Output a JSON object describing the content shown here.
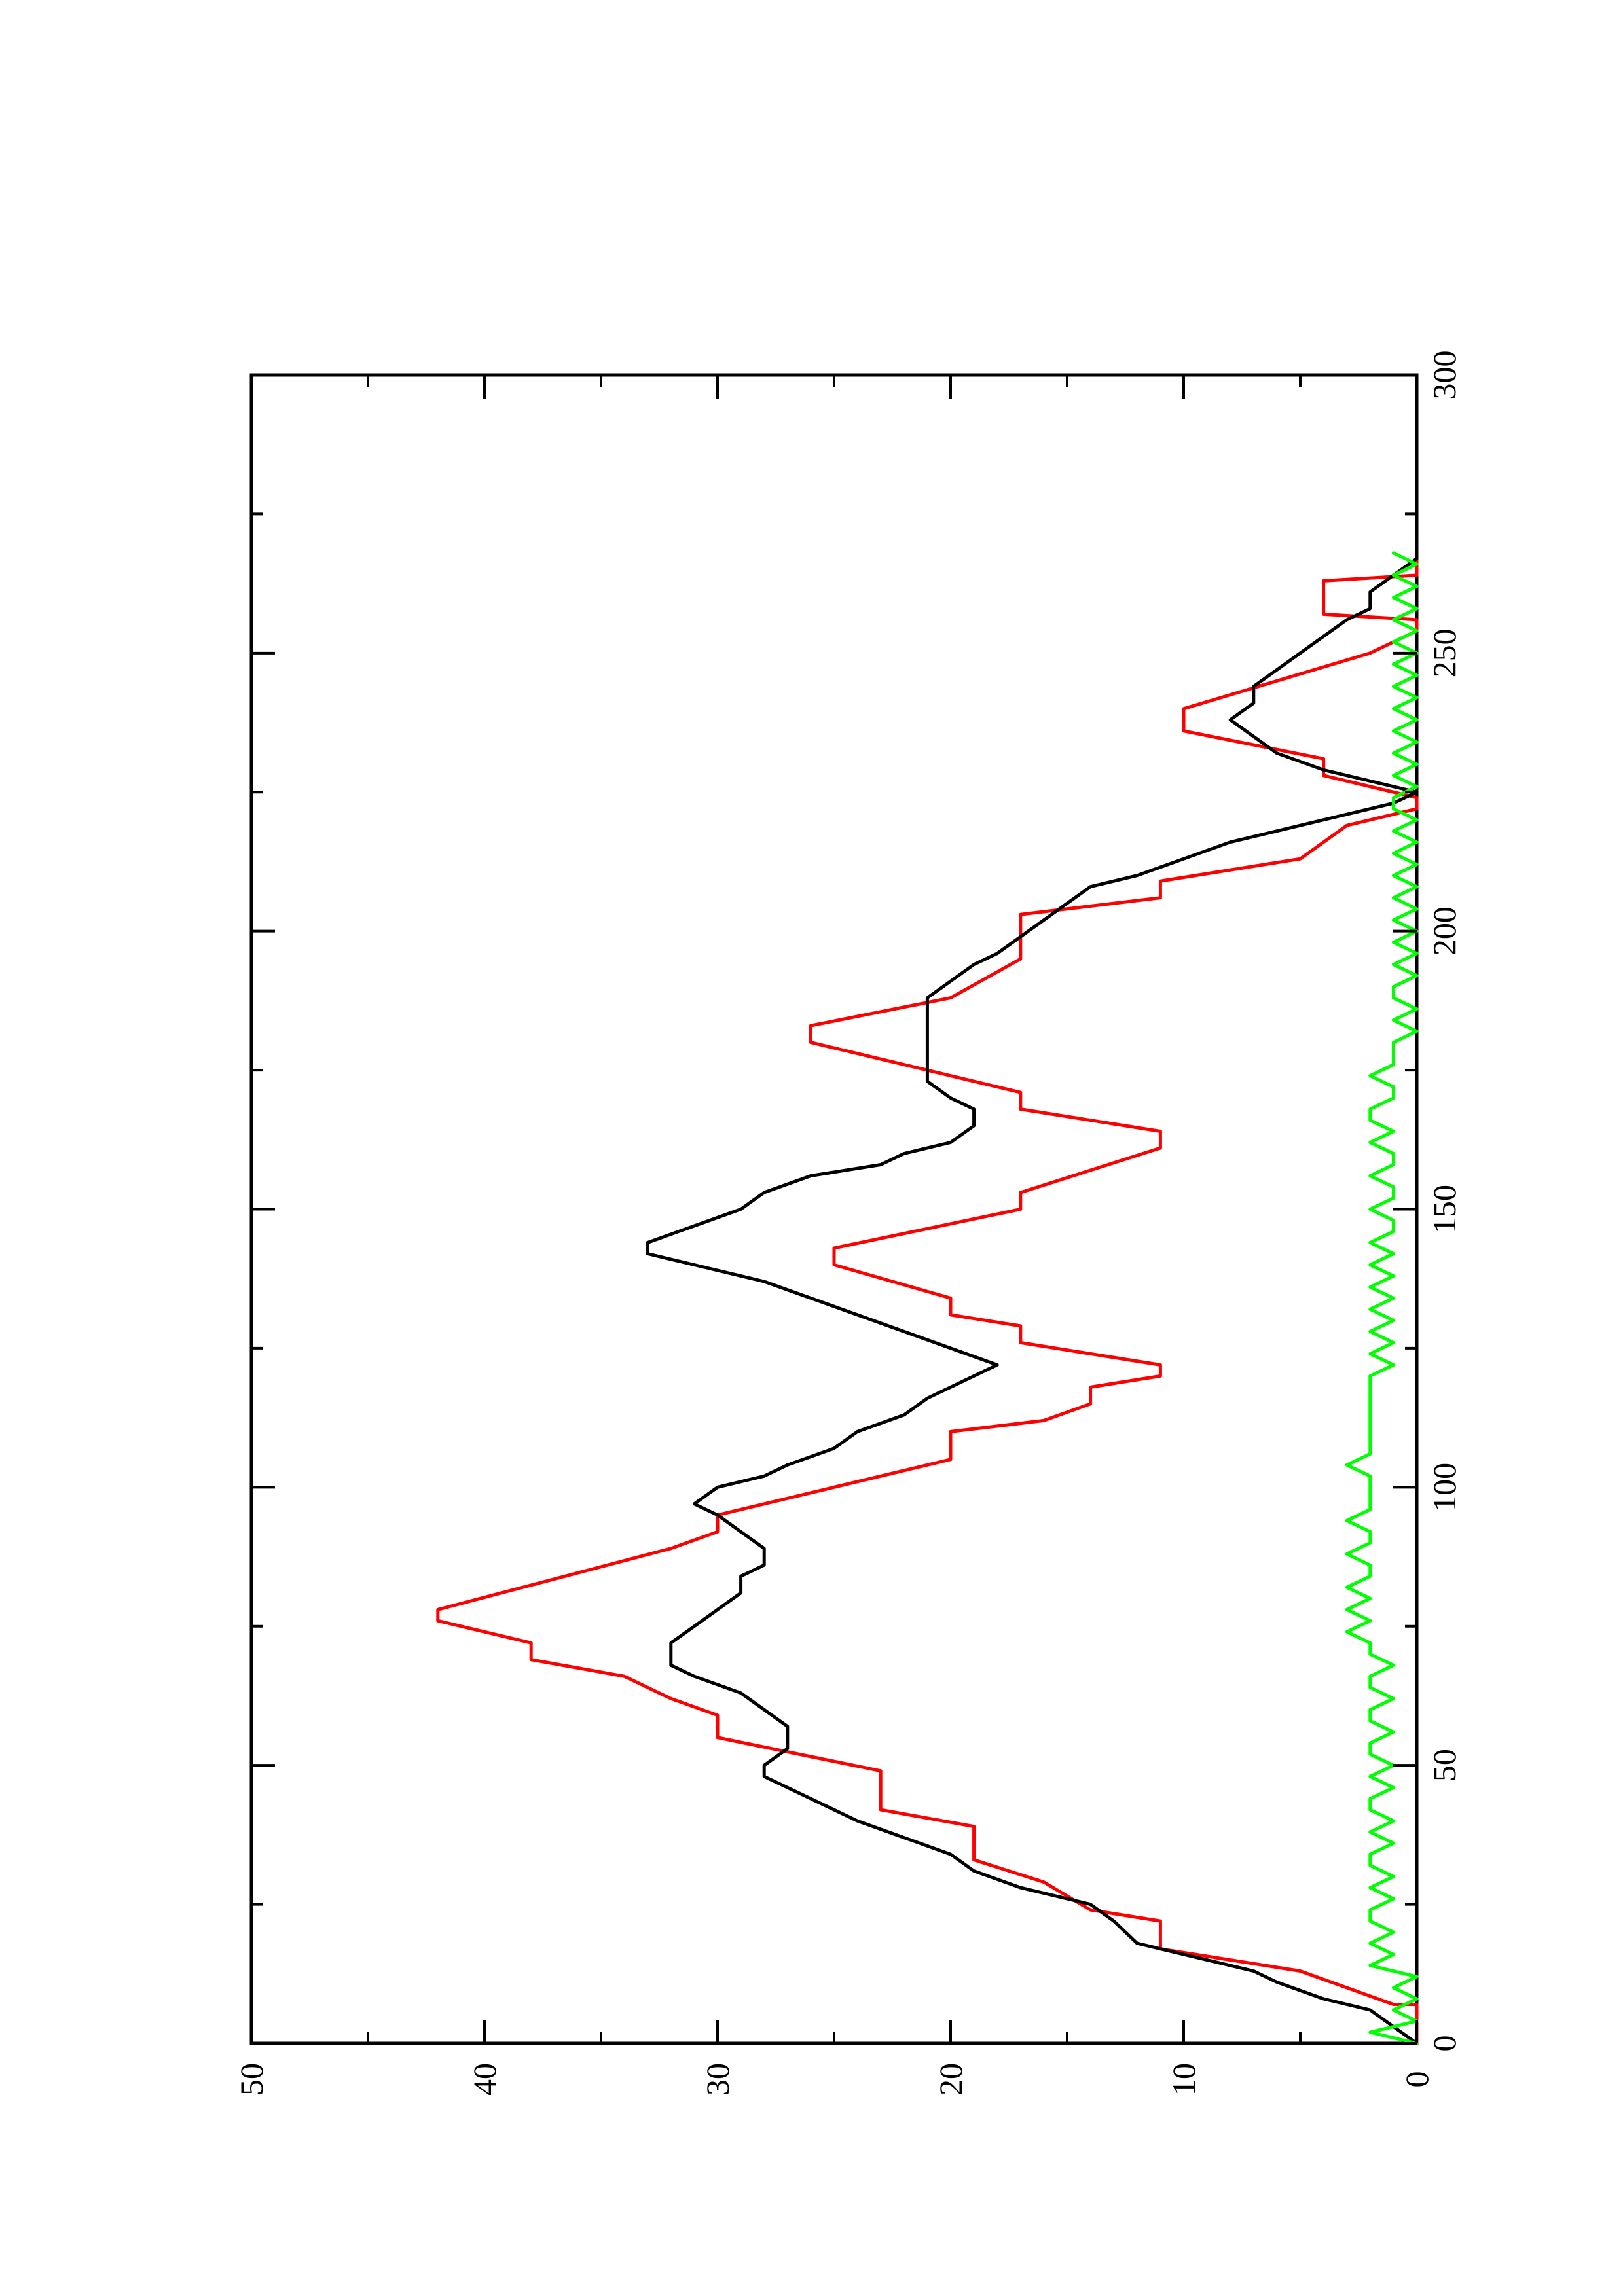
{
  "chart_data": {
    "type": "line",
    "orientation": "rotated-90-ccw",
    "title": "",
    "xlabel": "",
    "ylabel": "",
    "xlim": [
      0,
      300
    ],
    "ylim": [
      0,
      50
    ],
    "x_ticks": [
      0,
      50,
      100,
      150,
      200,
      250,
      300
    ],
    "x_tick_labels": [
      "0",
      "50",
      "100",
      "150",
      "200",
      "250",
      "300"
    ],
    "x_minor_ticks": [
      25,
      75,
      125,
      175,
      225,
      275
    ],
    "y_ticks": [
      0,
      10,
      20,
      30,
      40,
      50
    ],
    "y_tick_labels": [
      "0",
      "10",
      "20",
      "30",
      "40",
      "50"
    ],
    "y_minor_ticks": [
      5,
      15,
      25,
      35,
      45
    ],
    "grid": false,
    "legend": "none",
    "series": [
      {
        "color": "#ff0000",
        "points": [
          [
            0,
            0
          ],
          [
            7,
            0
          ],
          [
            7,
            1
          ],
          [
            13,
            5
          ],
          [
            17,
            11
          ],
          [
            22,
            11
          ],
          [
            24,
            14
          ],
          [
            29,
            16
          ],
          [
            33,
            19
          ],
          [
            39,
            19
          ],
          [
            42,
            23
          ],
          [
            49,
            23
          ],
          [
            55,
            30
          ],
          [
            59,
            30
          ],
          [
            62,
            32
          ],
          [
            66,
            34
          ],
          [
            69,
            38
          ],
          [
            72,
            38
          ],
          [
            76,
            42
          ],
          [
            78,
            42
          ],
          [
            89,
            32
          ],
          [
            92,
            30
          ],
          [
            95,
            30
          ],
          [
            105,
            20
          ],
          [
            110,
            20
          ],
          [
            112,
            16
          ],
          [
            115,
            14
          ],
          [
            118,
            14
          ],
          [
            120,
            11
          ],
          [
            122,
            11
          ],
          [
            126,
            17
          ],
          [
            129,
            17
          ],
          [
            131,
            20
          ],
          [
            134,
            20
          ],
          [
            140,
            25
          ],
          [
            143,
            25
          ],
          [
            150,
            17
          ],
          [
            153,
            17
          ],
          [
            161,
            11
          ],
          [
            164,
            11
          ],
          [
            168,
            17
          ],
          [
            171,
            17
          ],
          [
            180,
            26
          ],
          [
            183,
            26
          ],
          [
            188,
            20
          ],
          [
            195,
            17
          ],
          [
            203,
            17
          ],
          [
            206,
            11
          ],
          [
            209,
            11
          ],
          [
            213,
            5
          ],
          [
            219,
            3
          ],
          [
            222,
            0
          ],
          [
            224,
            0
          ],
          [
            228,
            4
          ],
          [
            231,
            4
          ],
          [
            236,
            10
          ],
          [
            240,
            10
          ],
          [
            250,
            2
          ],
          [
            254,
            0
          ],
          [
            256,
            0
          ],
          [
            257,
            4
          ],
          [
            263,
            4
          ],
          [
            264,
            0
          ],
          [
            268,
            0
          ]
        ]
      },
      {
        "color": "#000000",
        "points": [
          [
            0,
            0
          ],
          [
            3,
            1
          ],
          [
            6,
            2
          ],
          [
            8,
            4
          ],
          [
            11,
            6
          ],
          [
            13,
            7
          ],
          [
            16,
            10
          ],
          [
            18,
            12
          ],
          [
            22,
            13
          ],
          [
            25,
            14
          ],
          [
            28,
            17
          ],
          [
            31,
            19
          ],
          [
            34,
            20
          ],
          [
            37,
            22
          ],
          [
            40,
            24
          ],
          [
            44,
            26
          ],
          [
            48,
            28
          ],
          [
            50,
            28
          ],
          [
            53,
            27
          ],
          [
            57,
            27
          ],
          [
            60,
            28
          ],
          [
            63,
            29
          ],
          [
            66,
            31
          ],
          [
            68,
            32
          ],
          [
            72,
            32
          ],
          [
            75,
            31
          ],
          [
            78,
            30
          ],
          [
            81,
            29
          ],
          [
            84,
            29
          ],
          [
            86,
            28
          ],
          [
            89,
            28
          ],
          [
            92,
            29
          ],
          [
            95,
            30
          ],
          [
            97,
            31
          ],
          [
            100,
            30
          ],
          [
            102,
            28
          ],
          [
            104,
            27
          ],
          [
            107,
            25
          ],
          [
            110,
            24
          ],
          [
            113,
            22
          ],
          [
            116,
            21
          ],
          [
            118,
            20
          ],
          [
            120,
            19
          ],
          [
            122,
            18
          ],
          [
            125,
            20
          ],
          [
            128,
            22
          ],
          [
            131,
            24
          ],
          [
            134,
            26
          ],
          [
            137,
            28
          ],
          [
            140,
            31
          ],
          [
            142,
            33
          ],
          [
            144,
            33
          ],
          [
            147,
            31
          ],
          [
            150,
            29
          ],
          [
            153,
            28
          ],
          [
            156,
            26
          ],
          [
            158,
            23
          ],
          [
            160,
            22
          ],
          [
            162,
            20
          ],
          [
            165,
            19
          ],
          [
            168,
            19
          ],
          [
            170,
            20
          ],
          [
            173,
            21
          ],
          [
            176,
            21
          ],
          [
            179,
            21
          ],
          [
            182,
            21
          ],
          [
            185,
            21
          ],
          [
            188,
            21
          ],
          [
            191,
            20
          ],
          [
            194,
            19
          ],
          [
            196,
            18
          ],
          [
            199,
            17
          ],
          [
            202,
            16
          ],
          [
            205,
            15
          ],
          [
            208,
            14
          ],
          [
            210,
            12
          ],
          [
            213,
            10
          ],
          [
            216,
            8
          ],
          [
            219,
            5
          ],
          [
            221,
            3
          ],
          [
            223,
            1
          ],
          [
            225,
            0
          ],
          [
            227,
            2
          ],
          [
            229,
            4
          ],
          [
            232,
            6
          ],
          [
            235,
            7
          ],
          [
            238,
            8
          ],
          [
            241,
            7
          ],
          [
            244,
            7
          ],
          [
            247,
            6
          ],
          [
            250,
            5
          ],
          [
            253,
            4
          ],
          [
            256,
            3
          ],
          [
            258,
            2
          ],
          [
            261,
            2
          ],
          [
            264,
            1
          ],
          [
            267,
            0
          ],
          [
            269,
            0
          ]
        ]
      },
      {
        "color": "#00ff00",
        "points": [
          [
            0,
            0
          ],
          [
            2,
            2
          ],
          [
            4,
            0
          ],
          [
            6,
            1
          ],
          [
            8,
            0
          ],
          [
            10,
            1
          ],
          [
            12,
            0
          ],
          [
            14,
            2
          ],
          [
            16,
            1
          ],
          [
            18,
            2
          ],
          [
            20,
            1
          ],
          [
            22,
            2
          ],
          [
            24,
            2
          ],
          [
            26,
            1
          ],
          [
            28,
            2
          ],
          [
            30,
            1
          ],
          [
            32,
            2
          ],
          [
            34,
            2
          ],
          [
            36,
            1
          ],
          [
            38,
            2
          ],
          [
            40,
            1
          ],
          [
            42,
            2
          ],
          [
            44,
            2
          ],
          [
            46,
            1
          ],
          [
            48,
            2
          ],
          [
            50,
            1
          ],
          [
            52,
            2
          ],
          [
            54,
            2
          ],
          [
            56,
            1
          ],
          [
            58,
            2
          ],
          [
            60,
            2
          ],
          [
            62,
            1
          ],
          [
            64,
            2
          ],
          [
            66,
            2
          ],
          [
            68,
            1
          ],
          [
            70,
            2
          ],
          [
            72,
            2
          ],
          [
            74,
            3
          ],
          [
            76,
            2
          ],
          [
            78,
            3
          ],
          [
            80,
            2
          ],
          [
            82,
            3
          ],
          [
            84,
            2
          ],
          [
            86,
            2
          ],
          [
            88,
            3
          ],
          [
            90,
            2
          ],
          [
            92,
            2
          ],
          [
            94,
            3
          ],
          [
            96,
            2
          ],
          [
            98,
            2
          ],
          [
            100,
            2
          ],
          [
            102,
            2
          ],
          [
            104,
            3
          ],
          [
            106,
            2
          ],
          [
            108,
            2
          ],
          [
            110,
            2
          ],
          [
            112,
            2
          ],
          [
            114,
            2
          ],
          [
            116,
            2
          ],
          [
            118,
            2
          ],
          [
            120,
            2
          ],
          [
            122,
            1
          ],
          [
            124,
            2
          ],
          [
            126,
            1
          ],
          [
            128,
            2
          ],
          [
            130,
            1
          ],
          [
            132,
            2
          ],
          [
            134,
            1
          ],
          [
            136,
            2
          ],
          [
            138,
            1
          ],
          [
            140,
            2
          ],
          [
            142,
            1
          ],
          [
            144,
            2
          ],
          [
            146,
            1
          ],
          [
            148,
            1
          ],
          [
            150,
            2
          ],
          [
            152,
            1
          ],
          [
            154,
            1
          ],
          [
            156,
            2
          ],
          [
            158,
            1
          ],
          [
            160,
            1
          ],
          [
            162,
            2
          ],
          [
            164,
            1
          ],
          [
            166,
            2
          ],
          [
            168,
            2
          ],
          [
            170,
            1
          ],
          [
            172,
            1
          ],
          [
            174,
            2
          ],
          [
            176,
            1
          ],
          [
            178,
            1
          ],
          [
            180,
            1
          ],
          [
            182,
            0
          ],
          [
            184,
            1
          ],
          [
            186,
            0
          ],
          [
            188,
            1
          ],
          [
            190,
            1
          ],
          [
            192,
            0
          ],
          [
            194,
            1
          ],
          [
            196,
            0
          ],
          [
            198,
            1
          ],
          [
            200,
            0
          ],
          [
            202,
            1
          ],
          [
            204,
            0
          ],
          [
            206,
            1
          ],
          [
            208,
            0
          ],
          [
            210,
            1
          ],
          [
            212,
            0
          ],
          [
            214,
            1
          ],
          [
            216,
            0
          ],
          [
            218,
            1
          ],
          [
            220,
            0
          ],
          [
            222,
            1
          ],
          [
            224,
            1
          ],
          [
            226,
            0
          ],
          [
            228,
            1
          ],
          [
            230,
            0
          ],
          [
            232,
            1
          ],
          [
            234,
            0
          ],
          [
            236,
            1
          ],
          [
            238,
            0
          ],
          [
            240,
            1
          ],
          [
            242,
            0
          ],
          [
            244,
            1
          ],
          [
            246,
            0
          ],
          [
            248,
            1
          ],
          [
            250,
            0
          ],
          [
            252,
            1
          ],
          [
            254,
            0
          ],
          [
            256,
            1
          ],
          [
            258,
            0
          ],
          [
            260,
            1
          ],
          [
            262,
            0
          ],
          [
            264,
            1
          ],
          [
            266,
            0
          ],
          [
            268,
            1
          ]
        ]
      }
    ]
  }
}
